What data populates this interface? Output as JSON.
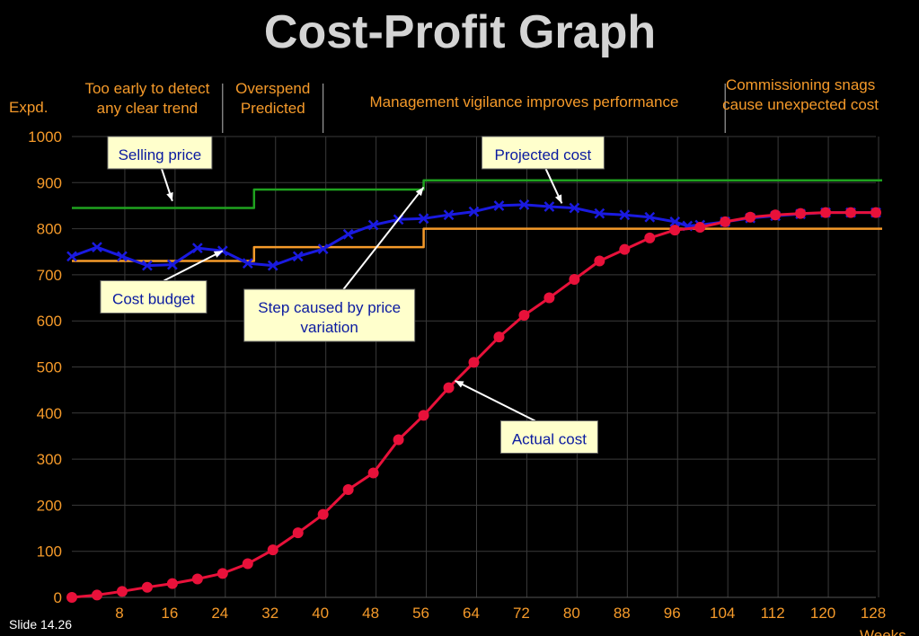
{
  "slide_label": "Slide 14.26",
  "chart_data": {
    "type": "line",
    "title": "Cost-Profit Graph",
    "ylabel": "Expd.",
    "xlabel": "Weeks",
    "xlim": [
      0,
      128
    ],
    "ylim": [
      0,
      1000
    ],
    "x_ticks": [
      8,
      16,
      24,
      32,
      40,
      48,
      56,
      64,
      72,
      80,
      88,
      96,
      104,
      112,
      120,
      128
    ],
    "y_ticks": [
      0,
      100,
      200,
      300,
      400,
      500,
      600,
      700,
      800,
      900,
      1000
    ],
    "grid": true,
    "phases": [
      {
        "lines": [
          "Too early to detect",
          "any clear trend"
        ],
        "x_end": 24
      },
      {
        "lines": [
          "Overspend",
          "Predicted"
        ],
        "x_end": 40
      },
      {
        "lines": [
          "Management vigilance improves performance"
        ],
        "x_end": 104
      },
      {
        "lines": [
          "Commissioning snags",
          "cause unexpected cost"
        ],
        "x_end": 128
      }
    ],
    "series": [
      {
        "name": "Selling price",
        "color": "#1fa21f",
        "marker": "none",
        "step": true,
        "points": [
          [
            0,
            845
          ],
          [
            29,
            845
          ],
          [
            29,
            885
          ],
          [
            56,
            885
          ],
          [
            56,
            905
          ],
          [
            129,
            905
          ]
        ]
      },
      {
        "name": "Cost budget",
        "color": "#f59a2a",
        "marker": "none",
        "step": true,
        "points": [
          [
            0,
            730
          ],
          [
            29,
            730
          ],
          [
            29,
            760
          ],
          [
            56,
            760
          ],
          [
            56,
            800
          ],
          [
            129,
            800
          ]
        ]
      },
      {
        "name": "Projected cost",
        "color": "#1a1ae0",
        "marker": "x",
        "step": false,
        "points": [
          [
            0,
            740
          ],
          [
            4,
            760
          ],
          [
            8,
            740
          ],
          [
            12,
            720
          ],
          [
            16,
            722
          ],
          [
            20,
            758
          ],
          [
            24,
            752
          ],
          [
            28,
            725
          ],
          [
            32,
            720
          ],
          [
            36,
            740
          ],
          [
            40,
            756
          ],
          [
            44,
            788
          ],
          [
            48,
            808
          ],
          [
            52,
            820
          ],
          [
            56,
            822
          ],
          [
            60,
            830
          ],
          [
            64,
            837
          ],
          [
            68,
            850
          ],
          [
            72,
            852
          ],
          [
            76,
            848
          ],
          [
            80,
            845
          ],
          [
            84,
            833
          ],
          [
            88,
            830
          ],
          [
            92,
            825
          ],
          [
            96,
            815
          ],
          [
            98,
            806
          ],
          [
            100,
            808
          ],
          [
            104,
            815
          ],
          [
            108,
            823
          ],
          [
            112,
            828
          ],
          [
            116,
            832
          ],
          [
            120,
            835
          ],
          [
            124,
            835
          ],
          [
            128,
            835
          ]
        ]
      },
      {
        "name": "Actual cost",
        "color": "#e8113a",
        "marker": "dot",
        "step": false,
        "points": [
          [
            0,
            0
          ],
          [
            4,
            5
          ],
          [
            8,
            13
          ],
          [
            12,
            22
          ],
          [
            16,
            30
          ],
          [
            20,
            40
          ],
          [
            24,
            52
          ],
          [
            28,
            73
          ],
          [
            32,
            103
          ],
          [
            36,
            140
          ],
          [
            40,
            180
          ],
          [
            44,
            234
          ],
          [
            48,
            270
          ],
          [
            52,
            342
          ],
          [
            56,
            395
          ],
          [
            60,
            455
          ],
          [
            64,
            510
          ],
          [
            68,
            565
          ],
          [
            72,
            612
          ],
          [
            76,
            650
          ],
          [
            80,
            690
          ],
          [
            84,
            730
          ],
          [
            88,
            755
          ],
          [
            92,
            780
          ],
          [
            96,
            797
          ],
          [
            100,
            803
          ],
          [
            104,
            815
          ],
          [
            108,
            825
          ],
          [
            112,
            830
          ],
          [
            116,
            833
          ],
          [
            120,
            835
          ],
          [
            124,
            835
          ],
          [
            128,
            835
          ]
        ]
      }
    ],
    "callouts": [
      {
        "lines": [
          "Selling price"
        ],
        "at": [
          16,
          860
        ],
        "box_center": [
          14,
          965
        ],
        "box_w": 116
      },
      {
        "lines": [
          "Projected cost"
        ],
        "at": [
          78,
          855
        ],
        "box_center": [
          75,
          965
        ],
        "box_w": 136
      },
      {
        "lines": [
          "Cost budget"
        ],
        "at": [
          24,
          752
        ],
        "box_center": [
          13,
          652
        ],
        "box_w": 118
      },
      {
        "lines": [
          "Step caused by price",
          "variation"
        ],
        "at": [
          56,
          890
        ],
        "box_center": [
          41,
          612
        ],
        "box_w": 190
      },
      {
        "lines": [
          "Actual cost"
        ],
        "at": [
          61,
          470
        ],
        "box_center": [
          76,
          348
        ],
        "box_w": 108
      }
    ]
  }
}
